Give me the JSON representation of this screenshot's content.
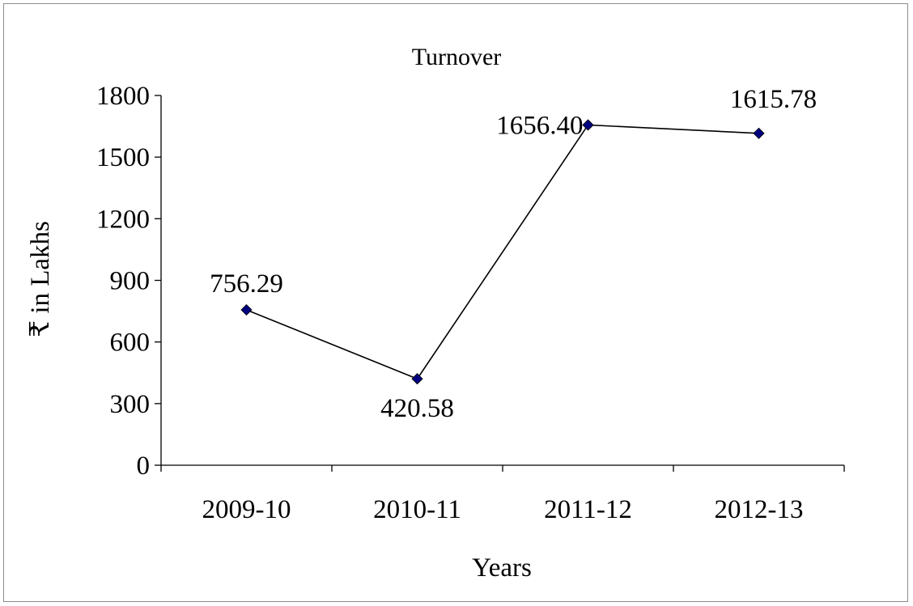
{
  "chart_data": {
    "type": "line",
    "title": "Turnover",
    "xlabel": "Years",
    "ylabel": "₹ in Lakhs",
    "categories": [
      "2009-10",
      "2010-11",
      "2011-12",
      "2012-13"
    ],
    "series": [
      {
        "values": [
          756.29,
          420.58,
          1656.4,
          1615.78
        ],
        "labels": [
          "756.29",
          "420.58",
          "1656.40",
          "1615.78"
        ],
        "line_color": "#000000",
        "marker_color": "#000080",
        "marker": "diamond"
      }
    ],
    "ylim": [
      0,
      1800
    ],
    "yticks": [
      "0",
      "300",
      "600",
      "900",
      "1200",
      "1500",
      "1800"
    ],
    "grid": false,
    "legend": "none"
  }
}
